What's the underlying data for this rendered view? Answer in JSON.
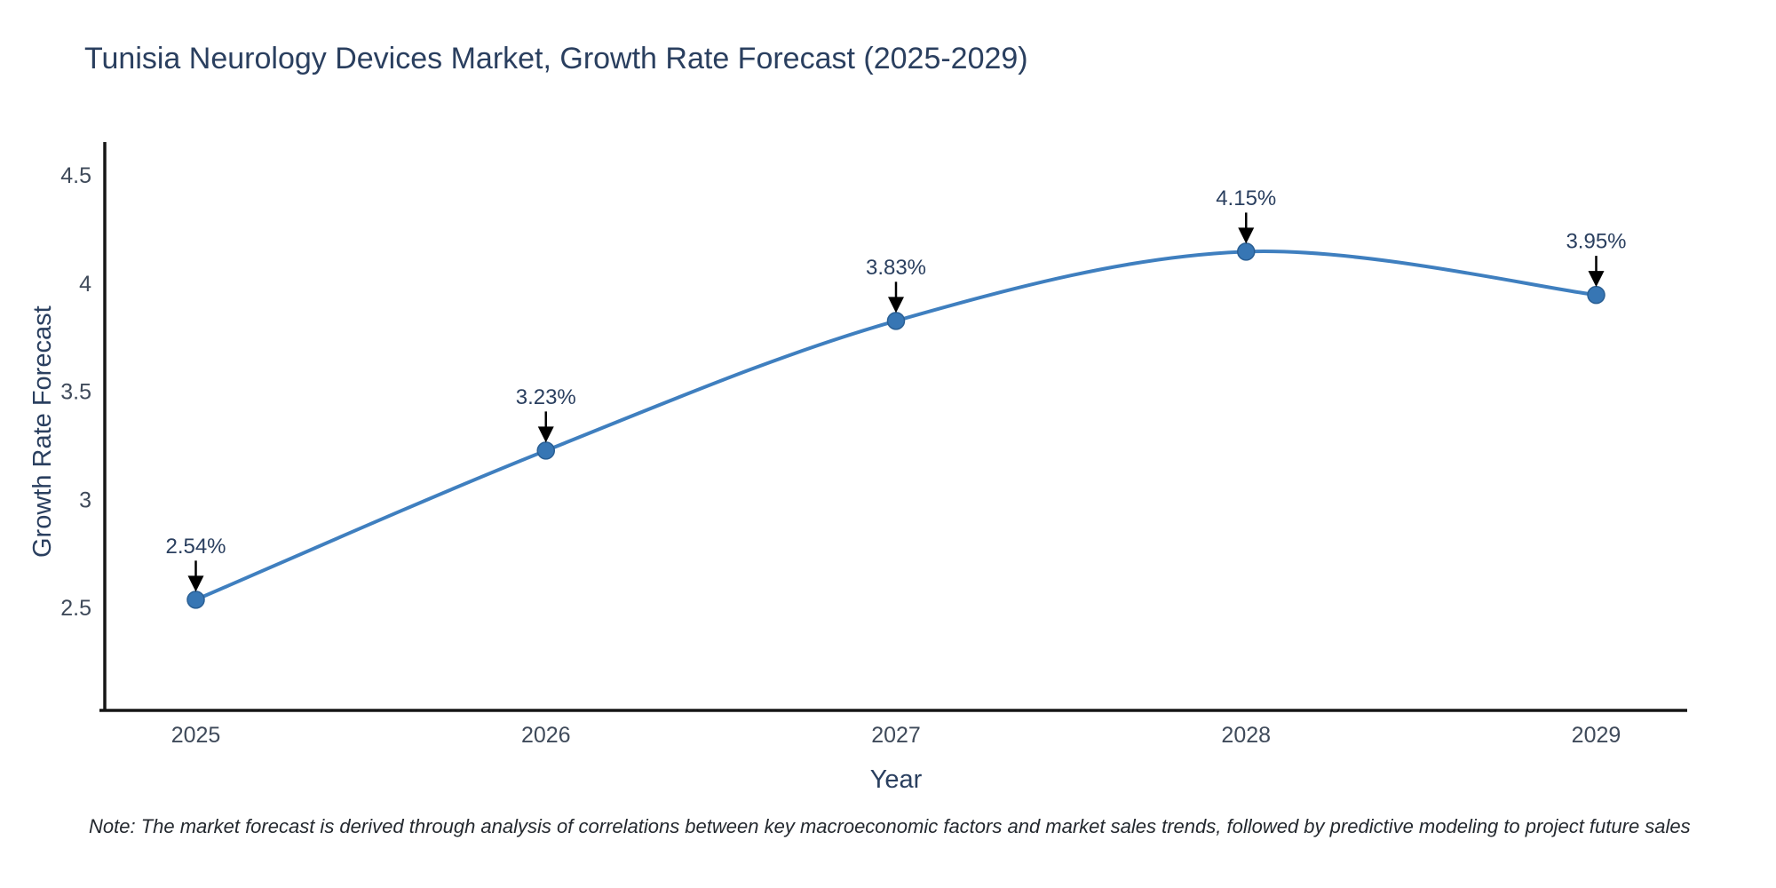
{
  "title": "Tunisia Neurology Devices Market, Growth Rate Forecast (2025-2029)",
  "note": "Note: The market forecast is derived through analysis of correlations between key macroeconomic factors and market sales trends, followed by predictive modeling to project future sales",
  "chart_data": {
    "type": "line",
    "title": "Tunisia Neurology Devices Market, Growth Rate Forecast (2025-2029)",
    "xlabel": "Year",
    "ylabel": "Growth Rate Forecast",
    "x": [
      2025,
      2026,
      2027,
      2028,
      2029
    ],
    "values": [
      2.54,
      3.23,
      3.83,
      4.15,
      3.95
    ],
    "point_labels": [
      "2.54%",
      "3.23%",
      "3.83%",
      "4.15%",
      "3.95%"
    ],
    "x_tick_labels": [
      "2025",
      "2026",
      "2027",
      "2028",
      "2029"
    ],
    "y_ticks": [
      2.5,
      3,
      3.5,
      4,
      4.5
    ],
    "y_tick_labels": [
      "2.5",
      "3",
      "3.5",
      "4",
      "4.5"
    ],
    "xlim": [
      2024.74,
      2029.26
    ],
    "ylim": [
      2.028,
      4.657
    ],
    "grid": false,
    "legend": "none",
    "line_shape": "spline",
    "annotations": "value labels with black arrows pointing to each marker"
  },
  "colors": {
    "background": "#ffffff",
    "title_text": "#2a3f5f",
    "tick_text": "#3f4a5a",
    "axis_line": "#161616",
    "series_line": "#3f7fbf",
    "marker_fill": "#3776b4",
    "marker_stroke": "#2a5f94",
    "annotation_text": "#2a3f5f",
    "arrow": "#000000"
  }
}
